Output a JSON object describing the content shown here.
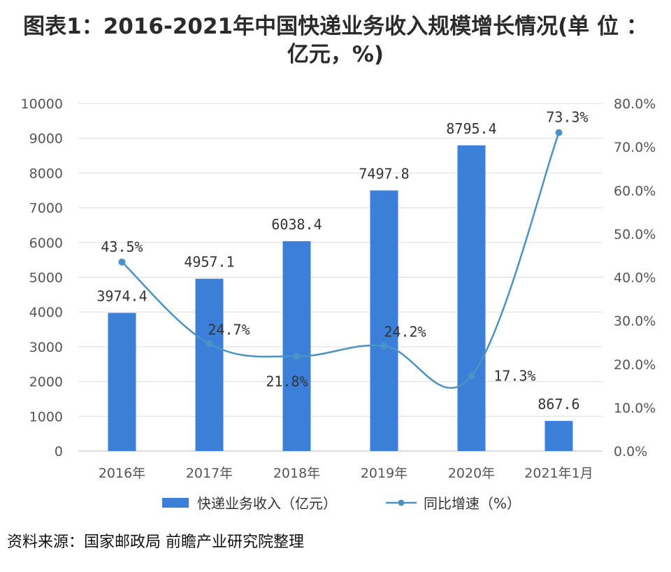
{
  "title_line1": "图表1：2016-2021年中国快递业务收入规模增长情况(单 位 ：",
  "title_line2": "亿元，%)",
  "source": "资料来源：国家邮政局 前瞻产业研究院整理",
  "colors": {
    "bar": "#3b7fd9",
    "line": "#4b93c6",
    "grid": "#dddddd"
  },
  "chart_data": {
    "type": "bar+line",
    "categories": [
      "2016年",
      "2017年",
      "2018年",
      "2019年",
      "2020年",
      "2021年1月"
    ],
    "series": [
      {
        "name": "快递业务收入（亿元）",
        "type": "bar",
        "axis": "left",
        "values": [
          3974.4,
          4957.1,
          6038.4,
          7497.8,
          8795.4,
          867.6
        ],
        "labels": [
          "3974.4",
          "4957.1",
          "6038.4",
          "7497.8",
          "8795.4",
          "867.6"
        ]
      },
      {
        "name": "同比增速（%）",
        "type": "line",
        "axis": "right",
        "values": [
          43.5,
          24.7,
          21.8,
          24.2,
          17.3,
          73.3
        ],
        "labels": [
          "43.5%",
          "24.7%",
          "21.8%",
          "24.2%",
          "17.3%",
          "73.3%"
        ]
      }
    ],
    "yleft": {
      "ylim": [
        0,
        10000
      ],
      "ticks": [
        "0",
        "1000",
        "2000",
        "3000",
        "4000",
        "5000",
        "6000",
        "7000",
        "8000",
        "9000",
        "10000"
      ]
    },
    "yright": {
      "ylim": [
        0,
        80
      ],
      "ticks": [
        "0.0%",
        "10.0%",
        "20.0%",
        "30.0%",
        "40.0%",
        "50.0%",
        "60.0%",
        "70.0%",
        "80.0%"
      ]
    },
    "grid": true,
    "legend": "bottom"
  }
}
